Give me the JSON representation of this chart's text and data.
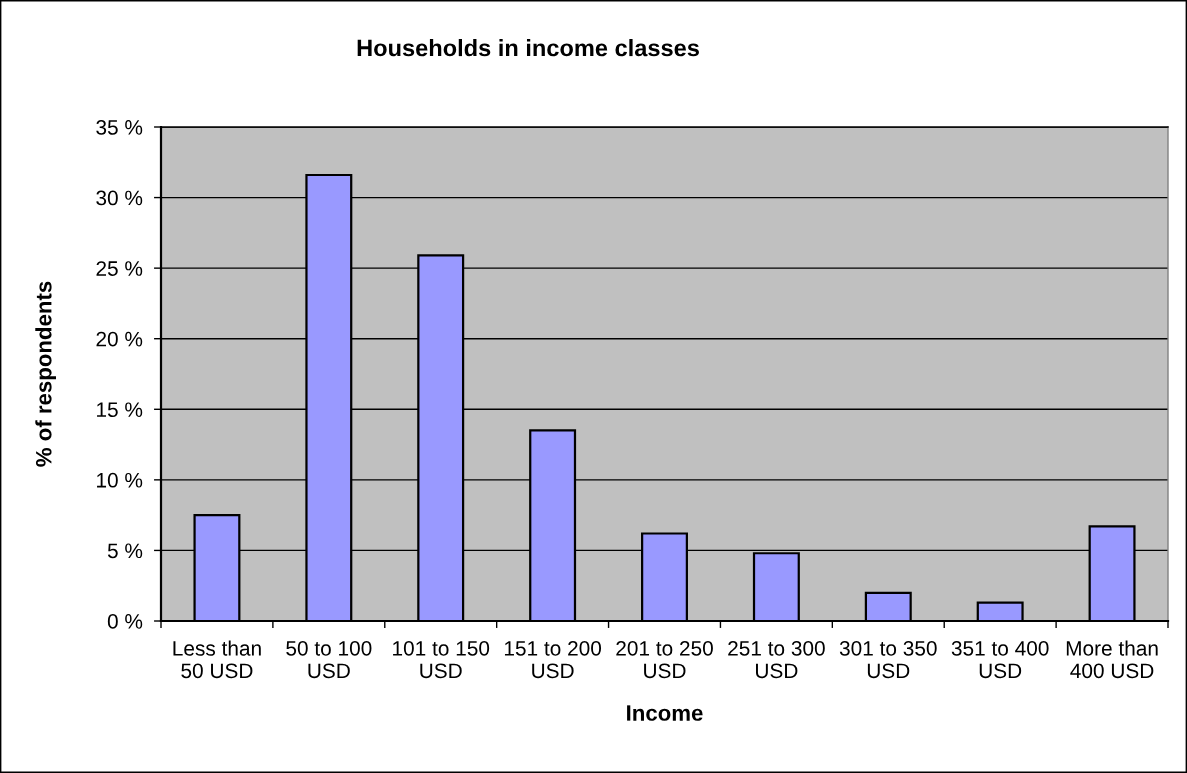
{
  "chart_data": {
    "type": "bar",
    "title": "Households in income classes",
    "xlabel": "Income",
    "ylabel": "% of respondents",
    "categories": [
      "Less than\n50 USD",
      "50 to 100\nUSD",
      "101 to 150\nUSD",
      "151 to 200\nUSD",
      "201 to 250\nUSD",
      "251 to 300\nUSD",
      "301 to 350\nUSD",
      "351 to 400\nUSD",
      "More than\n400 USD"
    ],
    "values": [
      7.5,
      31.6,
      25.9,
      13.5,
      6.2,
      4.8,
      2.0,
      1.3,
      6.7
    ],
    "color": "#9999ff",
    "ylim": [
      0,
      35
    ],
    "yticks": [
      {
        "value": 0,
        "label": "0 %"
      },
      {
        "value": 5,
        "label": "5 %"
      },
      {
        "value": 10,
        "label": "10 %"
      },
      {
        "value": 15,
        "label": "15 %"
      },
      {
        "value": 20,
        "label": "20 %"
      },
      {
        "value": 25,
        "label": "25 %"
      },
      {
        "value": 30,
        "label": "30 %"
      },
      {
        "value": 35,
        "label": "35 %"
      }
    ],
    "grid": "y"
  }
}
